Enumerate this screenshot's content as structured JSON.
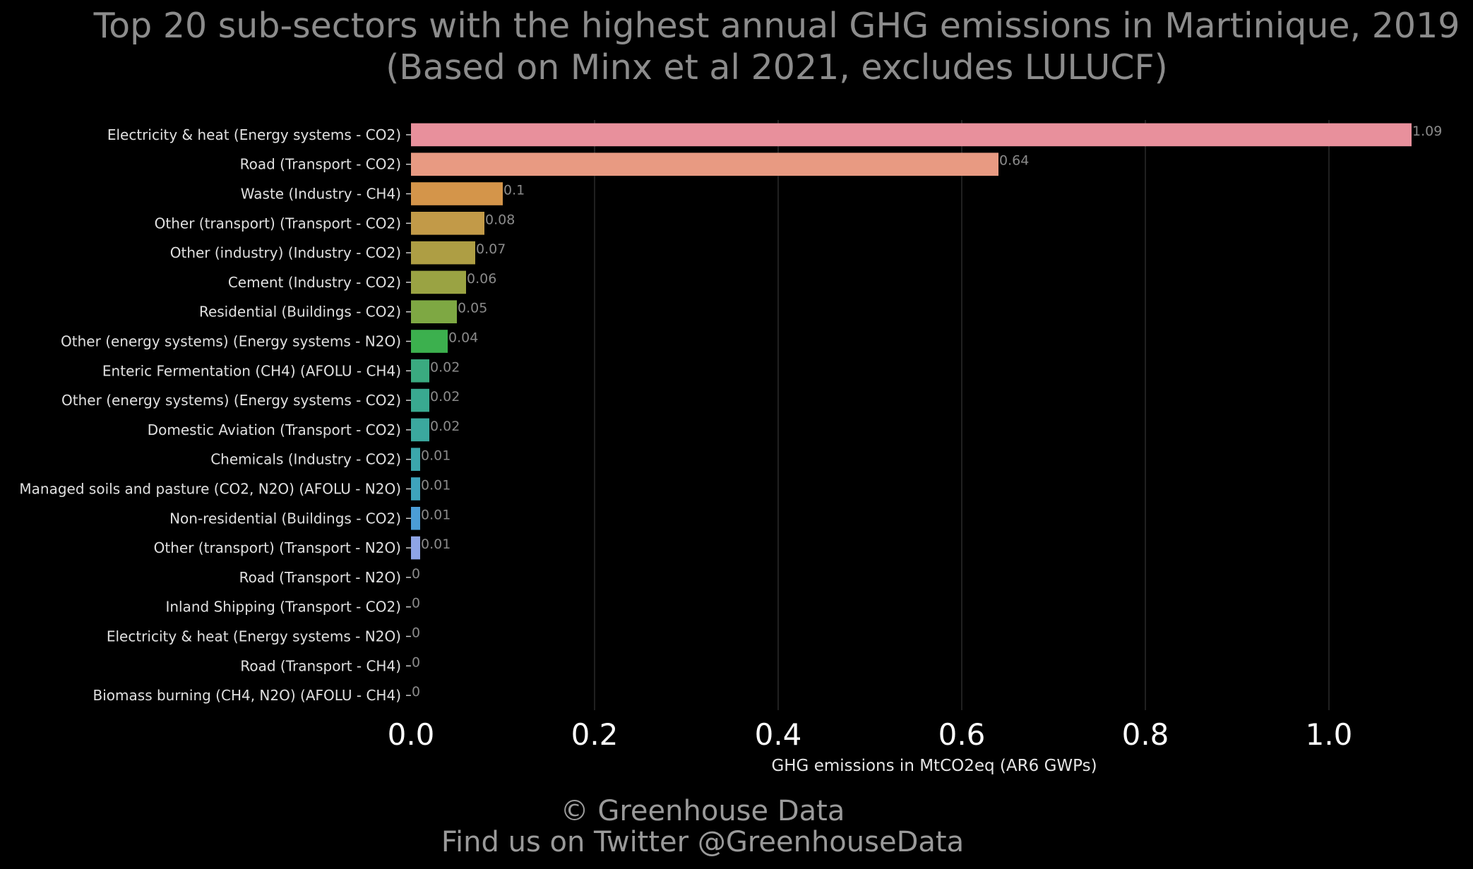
{
  "chart_data": {
    "type": "bar",
    "orientation": "horizontal",
    "title": "Top 20 sub-sectors with the highest annual GHG emissions in Martinique, 2019",
    "subtitle": "(Based on Minx et al 2021, excludes LULUCF)",
    "xlabel": "GHG emissions in MtCO2eq (AR6 GWPs)",
    "xlim": [
      0,
      1.1
    ],
    "xticks": [
      0.0,
      0.2,
      0.4,
      0.6,
      0.8,
      1.0
    ],
    "xtick_labels": [
      "0.0",
      "0.2",
      "0.4",
      "0.6",
      "0.8",
      "1.0"
    ],
    "grid": "vertical",
    "categories": [
      "Electricity & heat (Energy systems - CO2)",
      "Road (Transport - CO2)",
      "Waste (Industry - CH4)",
      "Other (transport) (Transport - CO2)",
      "Other (industry) (Industry - CO2)",
      "Cement (Industry - CO2)",
      "Residential (Buildings - CO2)",
      "Other (energy systems) (Energy systems - N2O)",
      "Enteric Fermentation (CH4) (AFOLU - CH4)",
      "Other (energy systems) (Energy systems - CO2)",
      "Domestic Aviation (Transport - CO2)",
      "Chemicals (Industry - CO2)",
      "Managed soils and pasture (CO2, N2O) (AFOLU - N2O)",
      "Non-residential (Buildings - CO2)",
      "Other (transport) (Transport - N2O)",
      "Road (Transport - N2O)",
      "Inland Shipping (Transport - CO2)",
      "Electricity & heat (Energy systems - N2O)",
      "Road (Transport - CH4)",
      "Biomass burning (CH4, N2O) (AFOLU - CH4)"
    ],
    "values": [
      1.09,
      0.64,
      0.1,
      0.08,
      0.07,
      0.06,
      0.05,
      0.04,
      0.02,
      0.02,
      0.02,
      0.01,
      0.01,
      0.01,
      0.01,
      0,
      0,
      0,
      0,
      0
    ],
    "value_labels": [
      "1.09",
      "0.64",
      "0.1",
      "0.08",
      "0.07",
      "0.06",
      "0.05",
      "0.04",
      "0.02",
      "0.02",
      "0.02",
      "0.01",
      "0.01",
      "0.01",
      "0.01",
      "0",
      "0",
      "0",
      "0",
      "0"
    ],
    "colors": [
      "#e8909c",
      "#e89a82",
      "#d4954a",
      "#c29a48",
      "#ae9e44",
      "#9aa343",
      "#7ea843",
      "#3cb04e",
      "#3aaa80",
      "#39a990",
      "#3ba89e",
      "#3ba6ac",
      "#3ea3bc",
      "#4b9dd6",
      "#8ea4e6",
      "#9aa8ee",
      "#9aa8ee",
      "#9aa8ee",
      "#9aa8ee",
      "#9aa8ee"
    ]
  },
  "footer": {
    "line1": "© Greenhouse Data",
    "line2": "Find us on Twitter @GreenhouseData"
  }
}
